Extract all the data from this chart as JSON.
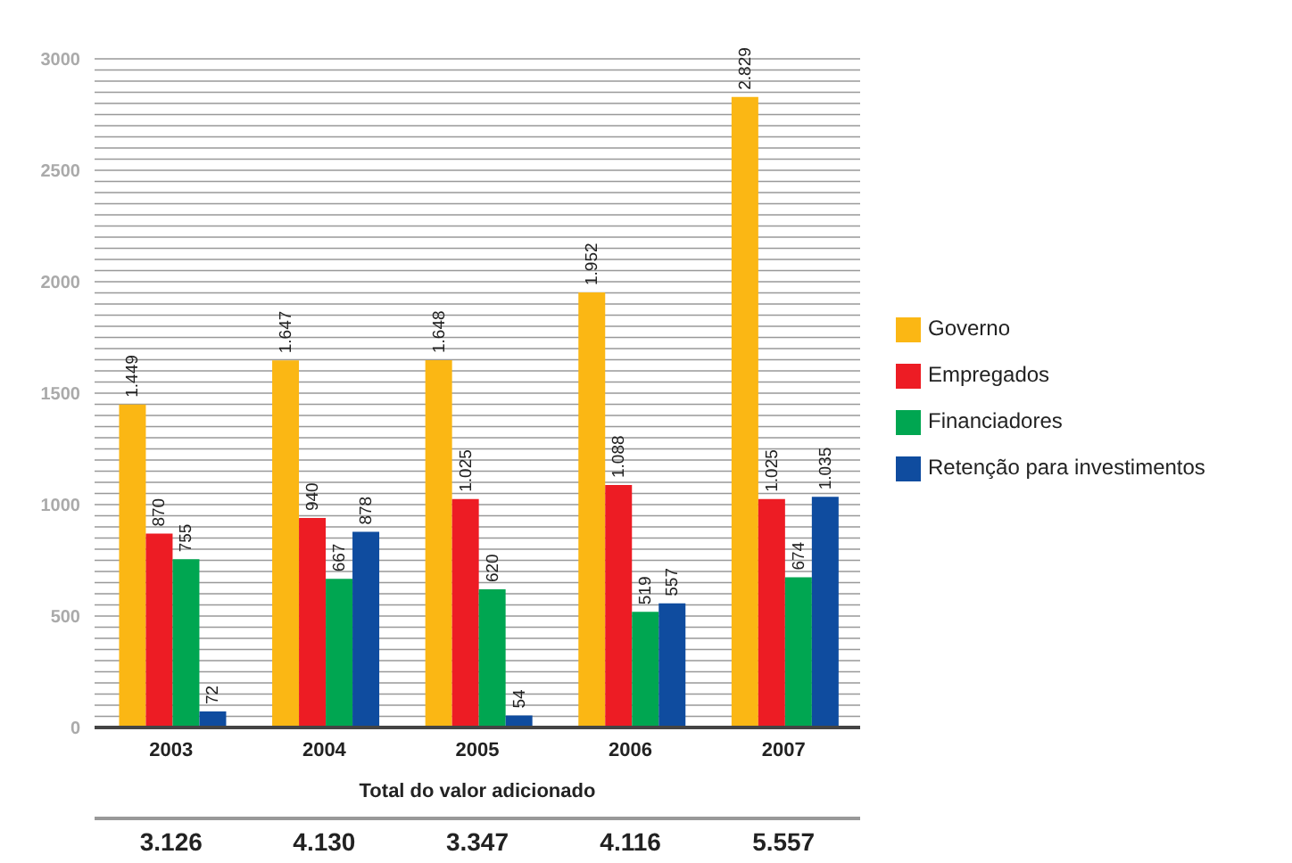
{
  "chart_data": {
    "type": "bar",
    "categories": [
      "2003",
      "2004",
      "2005",
      "2006",
      "2007"
    ],
    "series": [
      {
        "name": "Governo",
        "color": "#fbb714",
        "values": [
          1449,
          1647,
          1648,
          1952,
          2829
        ],
        "value_labels": [
          "1.449",
          "1.647",
          "1.648",
          "1.952",
          "2.829"
        ]
      },
      {
        "name": "Empregados",
        "color": "#ed1c24",
        "values": [
          870,
          940,
          1025,
          1088,
          1025
        ],
        "value_labels": [
          "870",
          "940",
          "1.025",
          "1.088",
          "1.025"
        ]
      },
      {
        "name": "Financiadores",
        "color": "#00a651",
        "values": [
          755,
          667,
          620,
          519,
          674
        ],
        "value_labels": [
          "755",
          "667",
          "620",
          "519",
          "674"
        ]
      },
      {
        "name": "Retenção para investimentos",
        "color": "#0f4c9f",
        "values": [
          72,
          878,
          54,
          557,
          1035
        ],
        "value_labels": [
          "72",
          "878",
          "54",
          "557",
          "1.035"
        ]
      }
    ],
    "ylim": [
      0,
      3000
    ],
    "yticks": [
      0,
      {
        "value": 50,
        "label": null
      },
      {
        "value": 100,
        "label": null
      },
      {
        "value": 150,
        "label": null
      },
      {
        "value": 200,
        "label": null
      },
      {
        "value": 250,
        "label": null
      },
      {
        "value": 300,
        "label": null
      },
      {
        "value": 350,
        "label": null
      },
      {
        "value": 400,
        "label": null
      },
      {
        "value": 450,
        "label": null
      },
      500,
      {
        "value": 550,
        "label": null
      },
      {
        "value": 600,
        "label": null
      },
      {
        "value": 650,
        "label": null
      },
      {
        "value": 700,
        "label": null
      },
      {
        "value": 750,
        "label": null
      },
      {
        "value": 800,
        "label": null
      },
      {
        "value": 850,
        "label": null
      },
      {
        "value": 900,
        "label": null
      },
      {
        "value": 950,
        "label": null
      },
      1000,
      {
        "value": 1050,
        "label": null
      },
      {
        "value": 1100,
        "label": null
      },
      {
        "value": 1150,
        "label": null
      },
      {
        "value": 1200,
        "label": null
      },
      {
        "value": 1250,
        "label": null
      },
      {
        "value": 1300,
        "label": null
      },
      {
        "value": 1350,
        "label": null
      },
      {
        "value": 1400,
        "label": null
      },
      {
        "value": 1450,
        "label": null
      },
      1500,
      {
        "value": 1550,
        "label": null
      },
      {
        "value": 1600,
        "label": null
      },
      {
        "value": 1650,
        "label": null
      },
      {
        "value": 1700,
        "label": null
      },
      {
        "value": 1750,
        "label": null
      },
      {
        "value": 1800,
        "label": null
      },
      {
        "value": 1850,
        "label": null
      },
      {
        "value": 1900,
        "label": null
      },
      {
        "value": 1950,
        "label": null
      },
      2000,
      {
        "value": 2050,
        "label": null
      },
      {
        "value": 2100,
        "label": null
      },
      {
        "value": 2150,
        "label": null
      },
      {
        "value": 2200,
        "label": null
      },
      {
        "value": 2250,
        "label": null
      },
      {
        "value": 2300,
        "label": null
      },
      {
        "value": 2350,
        "label": null
      },
      {
        "value": 2400,
        "label": null
      },
      {
        "value": 2450,
        "label": null
      },
      2500,
      {
        "value": 2550,
        "label": null
      },
      {
        "value": 2600,
        "label": null
      },
      {
        "value": 2650,
        "label": null
      },
      {
        "value": 2700,
        "label": null
      },
      {
        "value": 2750,
        "label": null
      },
      {
        "value": 2800,
        "label": null
      },
      {
        "value": 2850,
        "label": null
      },
      {
        "value": 2900,
        "label": null
      },
      {
        "value": 2950,
        "label": null
      },
      3000
    ],
    "grid": "y",
    "legend": "right",
    "annotations": [
      "Total do valor adicionado",
      "3.126",
      "4.130",
      "3.347",
      "4.116",
      "5.557"
    ]
  }
}
